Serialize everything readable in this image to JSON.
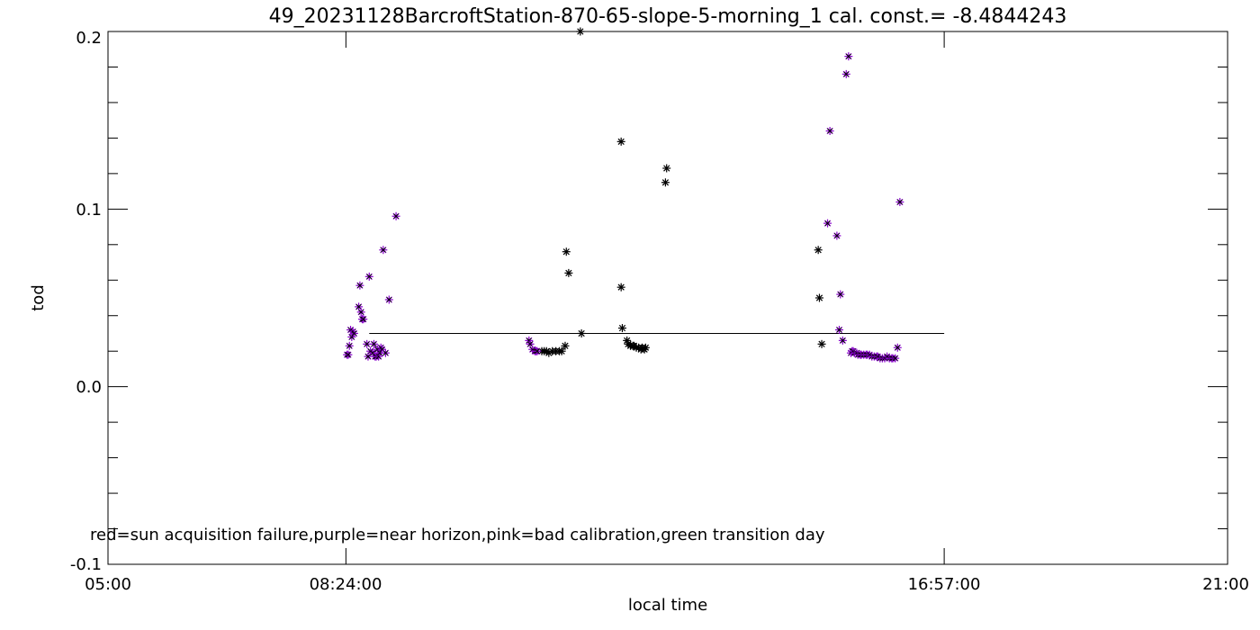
{
  "chart_data": {
    "type": "scatter",
    "title": "49_20231128BarcroftStation-870-65-slope-5-morning_1 cal. const.= -8.4844243",
    "xlabel": "local time",
    "ylabel": "tod",
    "xlim": [
      "05:00",
      "21:00"
    ],
    "ylim": [
      -0.1,
      0.2
    ],
    "x_tick_labels": [
      "05:00",
      "08:24:00",
      "16:57:00",
      "21:00"
    ],
    "y_tick_labels": [
      "-0.1",
      "0.0",
      "0.1",
      "0.2"
    ],
    "annotation": "red=sun acquisition failure,purple=near horizon,pink=bad calibration,green transition day",
    "reference_line": {
      "x_start": "08:44",
      "x_end": "16:57",
      "y": 0.03
    },
    "colors": {
      "normal": "#000000",
      "near_horizon": "#8800cc"
    },
    "grid": false,
    "series": [
      {
        "name": "purple=near horizon",
        "points": [
          [
            "08:25",
            0.018
          ],
          [
            "08:26",
            0.018
          ],
          [
            "08:27",
            0.023
          ],
          [
            "08:28",
            0.032
          ],
          [
            "08:29",
            0.028
          ],
          [
            "08:30",
            0.031
          ],
          [
            "08:31",
            0.03
          ],
          [
            "08:35",
            0.045
          ],
          [
            "08:36",
            0.057
          ],
          [
            "08:37",
            0.042
          ],
          [
            "08:38",
            0.038
          ],
          [
            "08:39",
            0.038
          ],
          [
            "08:42",
            0.024
          ],
          [
            "08:43",
            0.017
          ],
          [
            "08:44",
            0.062
          ],
          [
            "08:45",
            0.02
          ],
          [
            "08:47",
            0.019
          ],
          [
            "08:48",
            0.024
          ],
          [
            "08:49",
            0.017
          ],
          [
            "08:50",
            0.017
          ],
          [
            "08:51",
            0.021
          ],
          [
            "08:52",
            0.017
          ],
          [
            "08:53",
            0.019
          ],
          [
            "08:54",
            0.022
          ],
          [
            "08:55",
            0.021
          ],
          [
            "08:56",
            0.077
          ],
          [
            "08:58",
            0.019
          ],
          [
            "09:01",
            0.049
          ],
          [
            "09:07",
            0.096
          ],
          [
            "11:01",
            0.026
          ],
          [
            "11:02",
            0.024
          ],
          [
            "11:04",
            0.021
          ],
          [
            "11:06",
            0.02
          ],
          [
            "11:07",
            0.02
          ],
          [
            "11:08",
            0.02
          ],
          [
            "15:17",
            0.092
          ],
          [
            "15:19",
            0.144
          ],
          [
            "15:25",
            0.085
          ],
          [
            "15:27",
            0.032
          ],
          [
            "15:28",
            0.052
          ],
          [
            "15:30",
            0.026
          ],
          [
            "15:33",
            0.176
          ],
          [
            "15:35",
            0.186
          ],
          [
            "15:37",
            0.019
          ],
          [
            "15:38",
            0.02
          ],
          [
            "15:39",
            0.02
          ],
          [
            "15:40",
            0.019
          ],
          [
            "15:42",
            0.019
          ],
          [
            "15:43",
            0.018
          ],
          [
            "15:45",
            0.018
          ],
          [
            "15:46",
            0.018
          ],
          [
            "15:48",
            0.018
          ],
          [
            "15:50",
            0.018
          ],
          [
            "15:51",
            0.018
          ],
          [
            "15:53",
            0.018
          ],
          [
            "15:55",
            0.017
          ],
          [
            "15:57",
            0.017
          ],
          [
            "15:59",
            0.017
          ],
          [
            "16:00",
            0.017
          ],
          [
            "16:02",
            0.016
          ],
          [
            "16:04",
            0.016
          ],
          [
            "16:06",
            0.016
          ],
          [
            "16:08",
            0.017
          ],
          [
            "16:10",
            0.016
          ],
          [
            "16:12",
            0.016
          ],
          [
            "16:13",
            0.016
          ],
          [
            "16:15",
            0.016
          ],
          [
            "16:17",
            0.022
          ],
          [
            "16:19",
            0.104
          ]
        ]
      },
      {
        "name": "",
        "points": [
          [
            "11:12",
            0.02
          ],
          [
            "11:14",
            0.02
          ],
          [
            "11:16",
            0.02
          ],
          [
            "11:18",
            0.019
          ],
          [
            "11:21",
            0.02
          ],
          [
            "11:24",
            0.02
          ],
          [
            "11:27",
            0.02
          ],
          [
            "11:29",
            0.02
          ],
          [
            "11:32",
            0.023
          ],
          [
            "11:33",
            0.076
          ],
          [
            "11:35",
            0.064
          ],
          [
            "11:45",
            0.2
          ],
          [
            "11:46",
            0.03
          ],
          [
            "12:20",
            0.138
          ],
          [
            "12:20",
            0.056
          ],
          [
            "12:21",
            0.033
          ],
          [
            "12:25",
            0.026
          ],
          [
            "12:26",
            0.024
          ],
          [
            "12:28",
            0.023
          ],
          [
            "12:30",
            0.023
          ],
          [
            "12:31",
            0.023
          ],
          [
            "12:33",
            0.022
          ],
          [
            "12:35",
            0.022
          ],
          [
            "12:37",
            0.021
          ],
          [
            "12:38",
            0.022
          ],
          [
            "12:40",
            0.021
          ],
          [
            "12:41",
            0.022
          ],
          [
            "12:58",
            0.115
          ],
          [
            "12:59",
            0.123
          ],
          [
            "15:09",
            0.077
          ],
          [
            "15:10",
            0.05
          ],
          [
            "15:12",
            0.024
          ]
        ]
      }
    ]
  }
}
